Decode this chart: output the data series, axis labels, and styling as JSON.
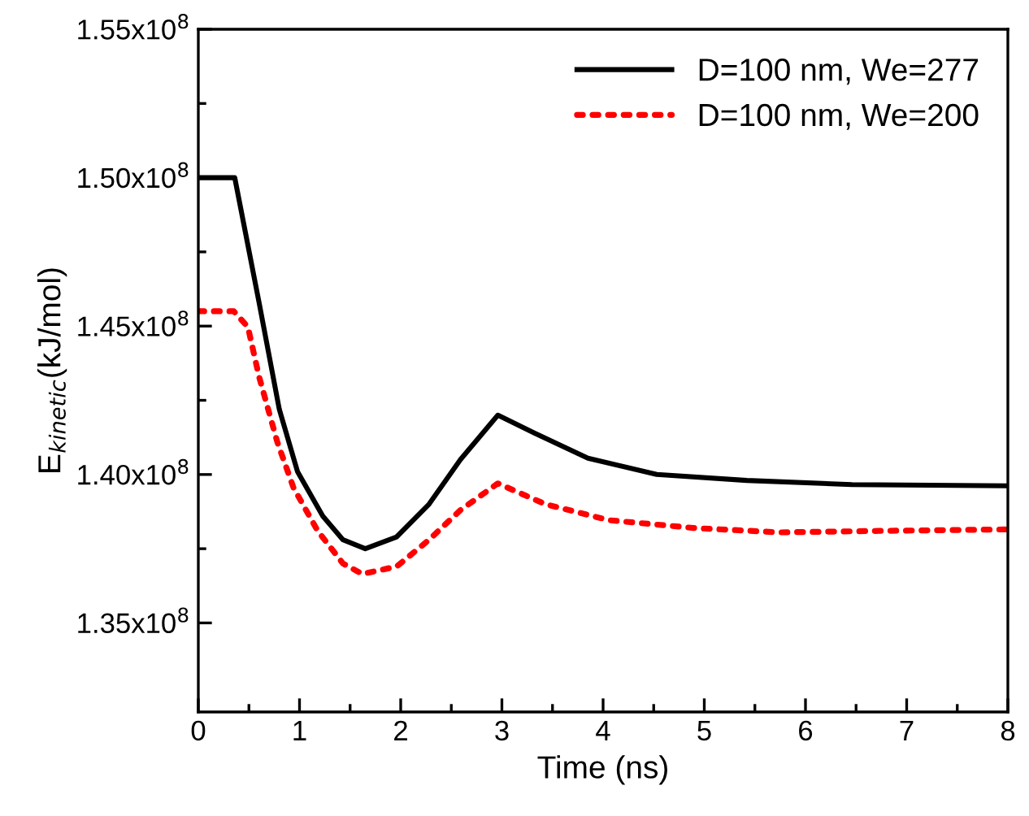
{
  "chart_data": {
    "type": "line",
    "xlabel": "Time (ns)",
    "ylabel": "E$_{kinetic}$(kJ/mol)",
    "xlim": [
      0,
      8
    ],
    "ylim": [
      132000000,
      155000000
    ],
    "xticks": [
      0,
      {
        "value": 0.5,
        "label": null
      },
      1,
      {
        "value": 1.5,
        "label": null
      },
      2,
      {
        "value": 2.5,
        "label": null
      },
      3,
      {
        "value": 3.5,
        "label": null
      },
      4,
      {
        "value": 4.5,
        "label": null
      },
      5,
      {
        "value": 5.5,
        "label": null
      },
      6,
      {
        "value": 6.5,
        "label": null
      },
      7,
      {
        "value": 7.5,
        "label": null
      },
      8
    ],
    "yticks": [
      {
        "value": 135000000,
        "label": "1.35x10$^{8}$"
      },
      {
        "value": 137500000,
        "label": null
      },
      {
        "value": 140000000,
        "label": "1.40x10$^{8}$"
      },
      {
        "value": 142500000,
        "label": null
      },
      {
        "value": 145000000,
        "label": "1.45x10$^{8}$"
      },
      {
        "value": 147500000,
        "label": null
      },
      {
        "value": 150000000,
        "label": "1.50x10$^{8}$"
      },
      {
        "value": 152500000,
        "label": null
      },
      {
        "value": 155000000,
        "label": "1.55x10$^{8}$"
      }
    ],
    "grid": false,
    "legend": "top right",
    "series": [
      {
        "name": "D=100 nm, We=277",
        "color": "#000000",
        "line_style": "solid",
        "x": [
          0,
          0.36,
          0.6,
          0.8,
          0.98,
          1.23,
          1.43,
          1.65,
          1.96,
          2.28,
          2.59,
          2.96,
          3.32,
          3.85,
          4.53,
          5.42,
          6.46,
          8
        ],
        "values": [
          150000000,
          150000000,
          145800000,
          142200000,
          140100000,
          138600000,
          137800000,
          137500000,
          137900000,
          139000000,
          140500000,
          142000000,
          141400000,
          140550000,
          140000000,
          139800000,
          139660000,
          139620000
        ]
      },
      {
        "name": "D=100 nm, We=200",
        "color": "#ff0000",
        "line_style": "dotted",
        "x": [
          0,
          0.35,
          0.49,
          0.6,
          0.78,
          0.94,
          1.18,
          1.43,
          1.62,
          1.96,
          2.28,
          2.59,
          2.96,
          3.43,
          4.06,
          4.89,
          5.74,
          6.73,
          8
        ],
        "values": [
          145500000,
          145500000,
          144970000,
          143300000,
          141100000,
          139560000,
          138100000,
          137000000,
          136650000,
          136900000,
          137800000,
          138800000,
          139700000,
          139000000,
          138460000,
          138200000,
          138050000,
          138100000,
          138150000
        ]
      }
    ]
  }
}
